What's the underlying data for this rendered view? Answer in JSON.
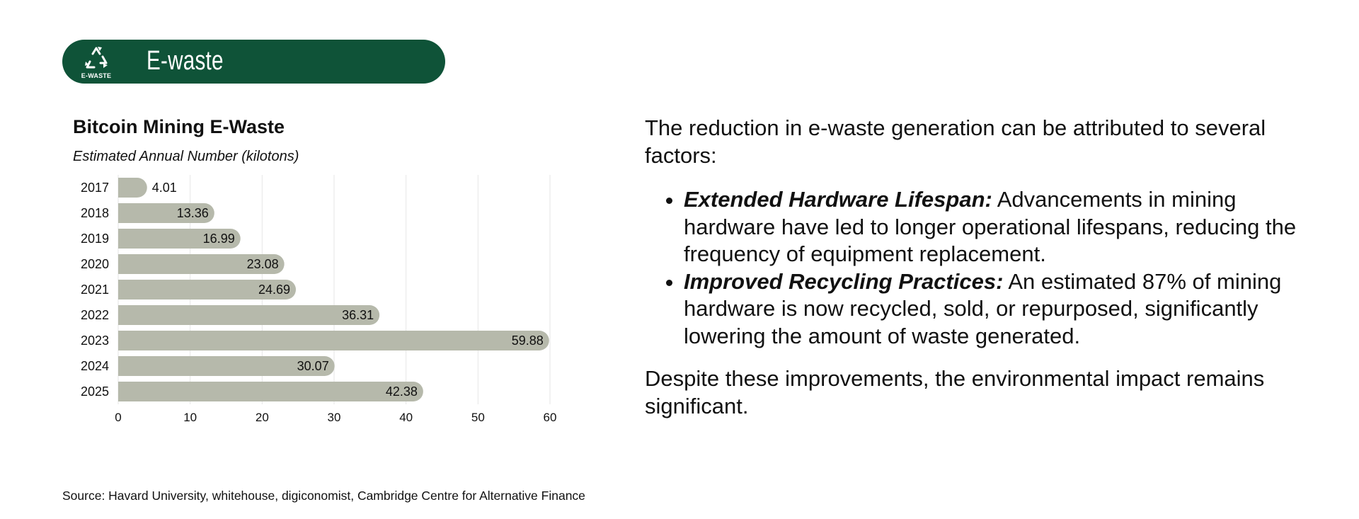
{
  "banner": {
    "icon": "recycle-icon",
    "icon_label": "E-WASTE",
    "title": "E-waste",
    "color": "#0f5338"
  },
  "chart_title": "Bitcoin Mining E-Waste",
  "chart_subtitle": "Estimated Annual Number (kilotons)",
  "chart_data": {
    "type": "bar",
    "orientation": "horizontal",
    "title": "Bitcoin Mining E-Waste",
    "subtitle": "Estimated Annual Number (kilotons)",
    "categories": [
      "2017",
      "2018",
      "2019",
      "2020",
      "2021",
      "2022",
      "2023",
      "2024",
      "2025"
    ],
    "values": [
      4.01,
      13.36,
      16.99,
      23.08,
      24.69,
      36.31,
      59.88,
      30.07,
      42.38
    ],
    "value_labels": [
      "4.01",
      "13.36",
      "16.99",
      "23.08",
      "24.69",
      "36.31",
      "59.88",
      "30.07",
      "42.38"
    ],
    "xlim": [
      0,
      60
    ],
    "xticks": [
      "0",
      "10",
      "20",
      "30",
      "40",
      "50",
      "60"
    ],
    "grid": true,
    "legend": "none",
    "bar_color": "#b6b9ab"
  },
  "narrative": {
    "intro": "The reduction in e-waste generation can be attributed to several factors:",
    "points": [
      {
        "term": "Extended Hardware Lifespan:",
        "text": "Advancements in mining hardware have led to longer operational lifespans, reducing the frequency of equipment replacement."
      },
      {
        "term": "Improved Recycling Practices:",
        "text": "An estimated 87% of mining hardware is now recycled, sold, or repurposed, significantly lowering the amount of waste generated."
      }
    ],
    "closing": "Despite these improvements, the environmental impact remains significant."
  },
  "source": "Source: Havard University, whitehouse, digiconomist, Cambridge Centre for Alternative Finance"
}
